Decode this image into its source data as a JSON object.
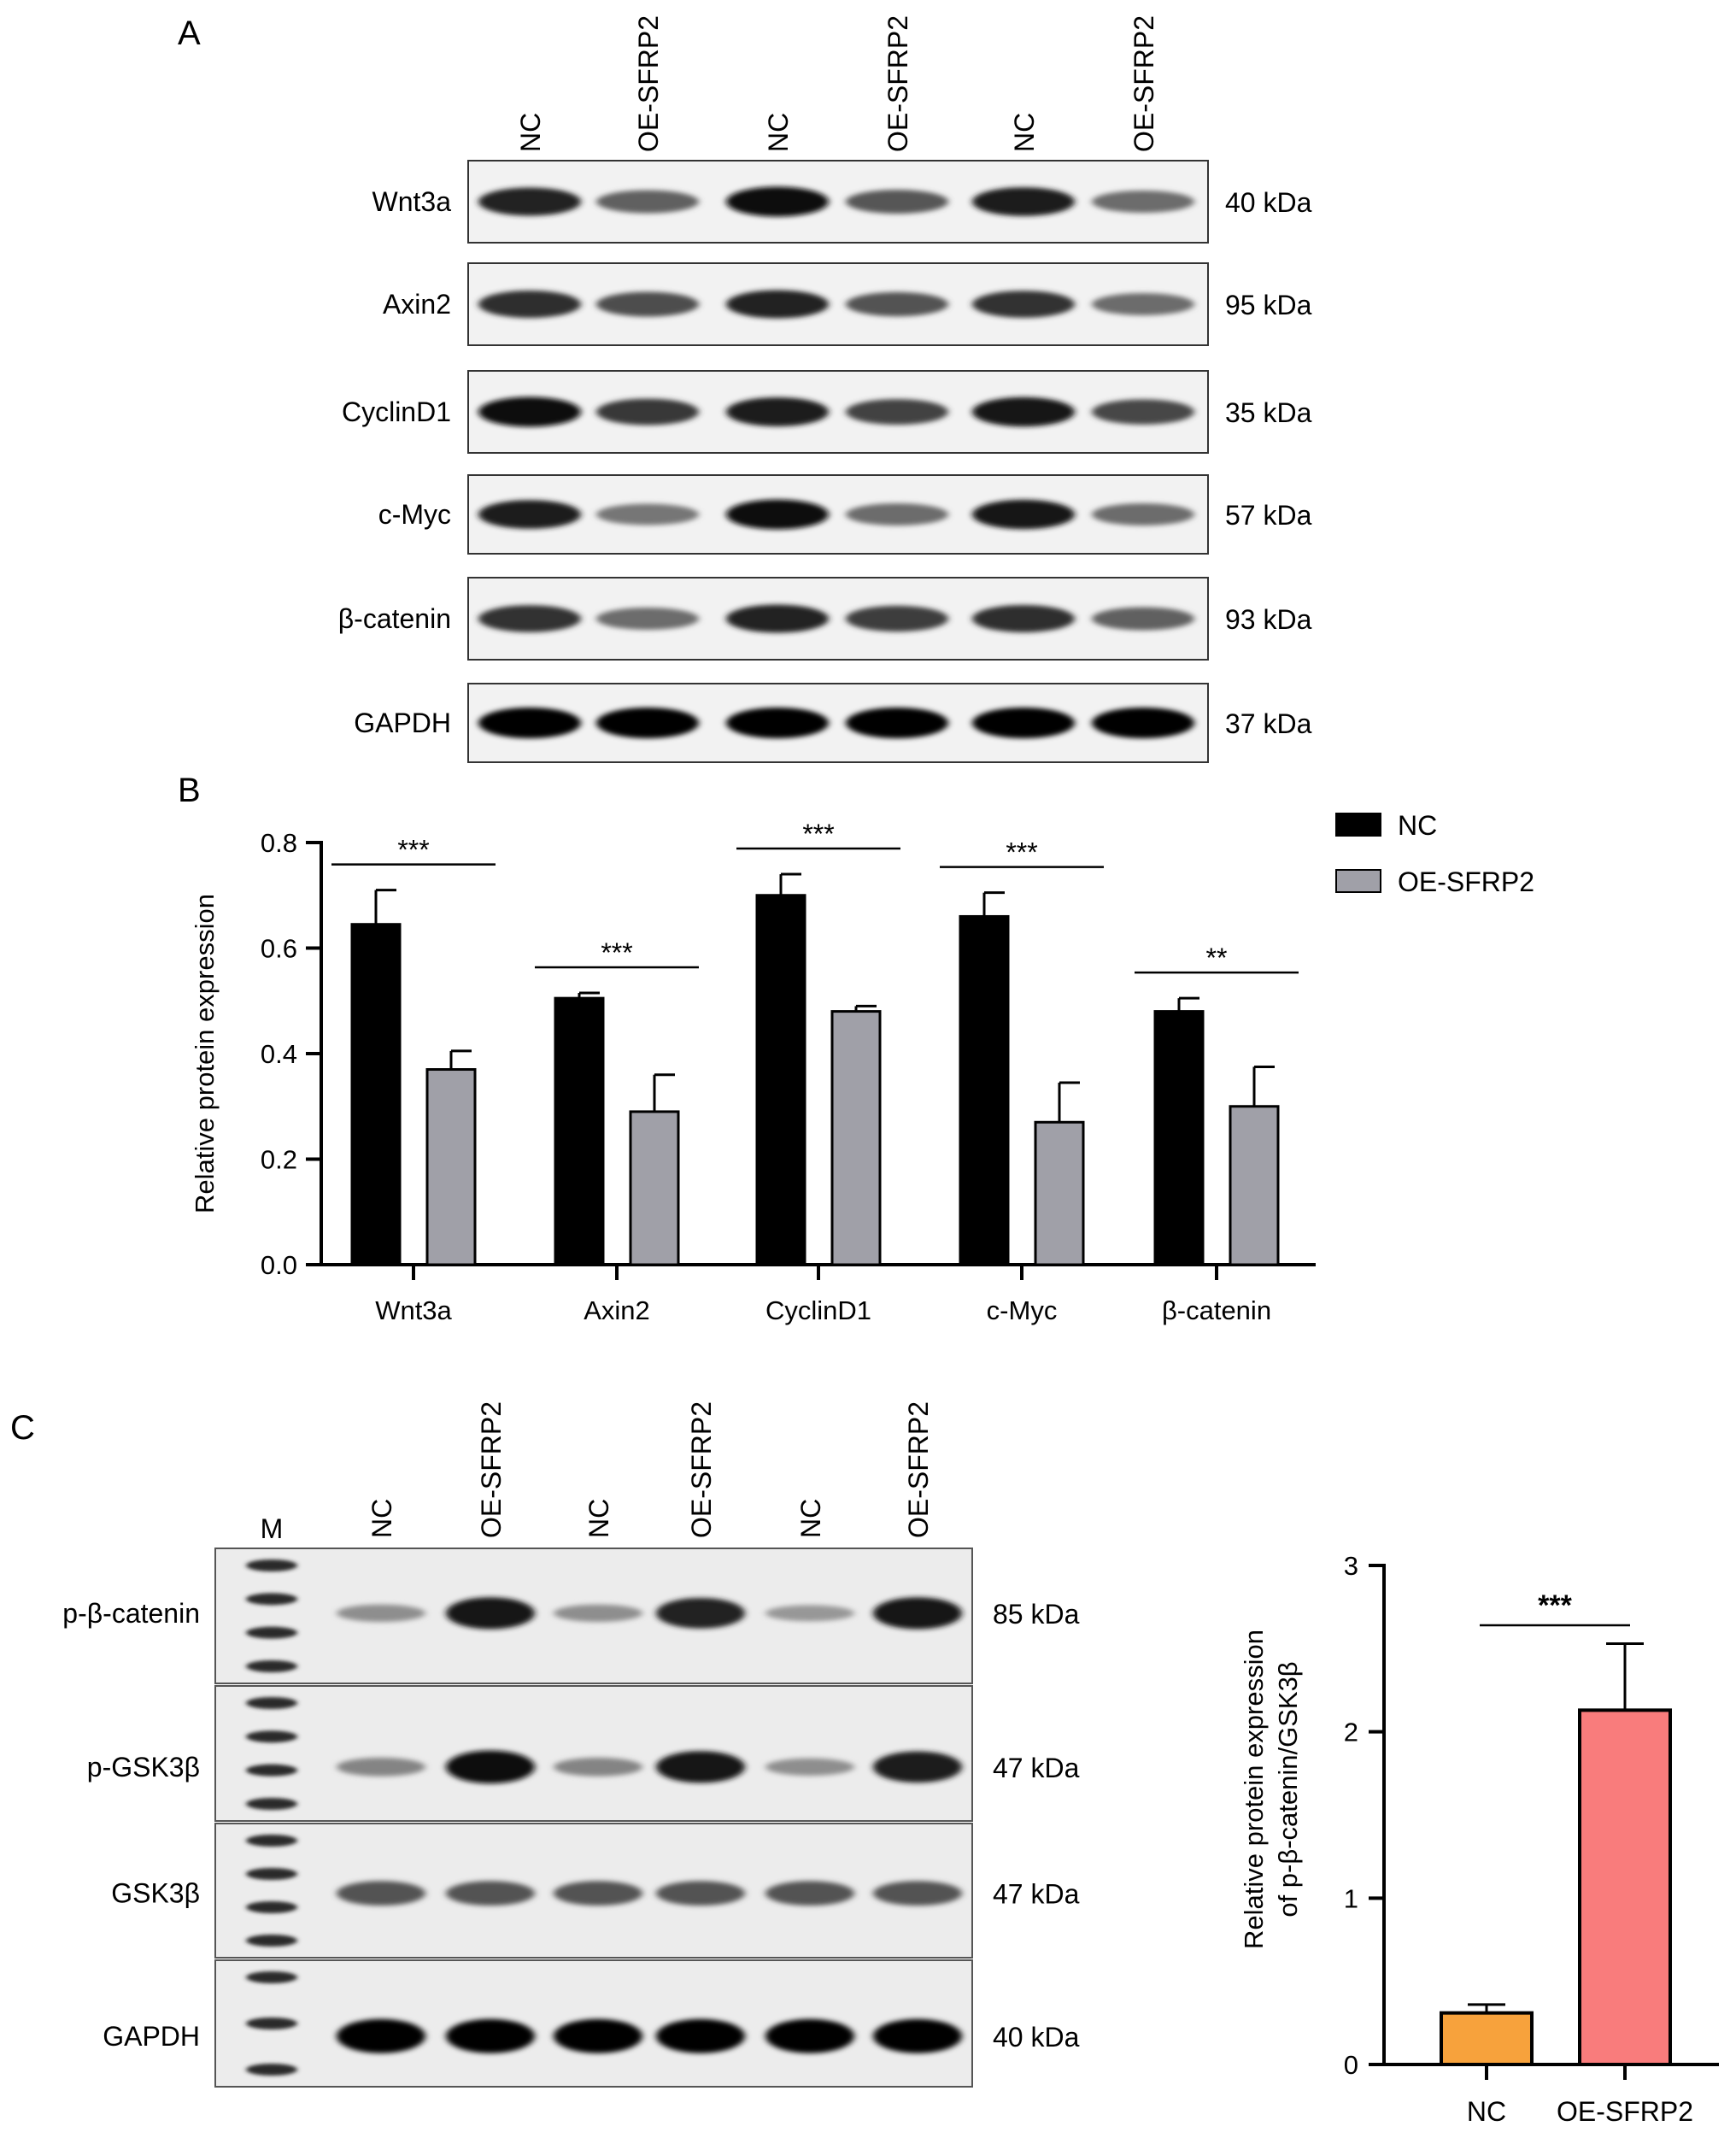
{
  "panels": {
    "A": {
      "letter": "A",
      "lanes": [
        "NC",
        "OE-SFRP2",
        "NC",
        "OE-SFRP2",
        "NC",
        "OE-SFRP2"
      ],
      "rows": [
        {
          "protein": "Wnt3a",
          "size": "40 kDa",
          "intensity": [
            0.85,
            0.55,
            0.95,
            0.6,
            0.88,
            0.5
          ]
        },
        {
          "protein": "Axin2",
          "size": "95 kDa",
          "intensity": [
            0.8,
            0.65,
            0.85,
            0.62,
            0.78,
            0.5
          ]
        },
        {
          "protein": "CyclinD1",
          "size": "35 kDa",
          "intensity": [
            0.95,
            0.75,
            0.9,
            0.7,
            0.92,
            0.68
          ]
        },
        {
          "protein": "c-Myc",
          "size": "57 kDa",
          "intensity": [
            0.88,
            0.45,
            0.95,
            0.5,
            0.92,
            0.5
          ]
        },
        {
          "protein": "β-catenin",
          "size": "93 kDa",
          "intensity": [
            0.78,
            0.5,
            0.85,
            0.72,
            0.8,
            0.55
          ]
        },
        {
          "protein": "GAPDH",
          "size": "37 kDa",
          "intensity": [
            1.0,
            1.0,
            1.0,
            1.0,
            1.0,
            1.0
          ]
        }
      ]
    },
    "B": {
      "letter": "B"
    },
    "C": {
      "letter": "C",
      "lanes": [
        "M",
        "NC",
        "OE-SFRP2",
        "NC",
        "OE-SFRP2",
        "NC",
        "OE-SFRP2"
      ],
      "rows": [
        {
          "protein": "p-β-catenin",
          "size": "85 kDa",
          "intensity": [
            0.3,
            0.9,
            0.3,
            0.85,
            0.25,
            0.9
          ]
        },
        {
          "protein": "p-GSK3β",
          "size": "47 kDa",
          "intensity": [
            0.35,
            0.95,
            0.35,
            0.9,
            0.3,
            0.88
          ]
        },
        {
          "protein": "GSK3β",
          "size": "47 kDa",
          "intensity": [
            0.6,
            0.6,
            0.6,
            0.6,
            0.6,
            0.6
          ]
        },
        {
          "protein": "GAPDH",
          "size": "40 kDa",
          "intensity": [
            1.0,
            1.0,
            1.0,
            1.0,
            1.0,
            1.0
          ]
        }
      ]
    }
  },
  "colors": {
    "nc_bar": "#000000",
    "oe_bar": "#a0a0a8",
    "nc_bar_c": "#f7a23c",
    "oe_bar_c": "#f97c7c"
  },
  "chart_data": [
    {
      "type": "bar",
      "panel": "B",
      "title": "",
      "xlabel": "",
      "ylabel": "Relative protein expression",
      "ylim": [
        0,
        0.8
      ],
      "yticks": [
        "0.0",
        "0.2",
        "0.4",
        "0.6",
        "0.8"
      ],
      "categories": [
        "Wnt3a",
        "Axin2",
        "CyclinD1",
        "c-Myc",
        "β-catenin"
      ],
      "series": [
        {
          "name": "NC",
          "values": [
            0.645,
            0.505,
            0.7,
            0.66,
            0.48
          ],
          "errors": [
            0.065,
            0.01,
            0.04,
            0.045,
            0.025
          ]
        },
        {
          "name": "OE-SFRP2",
          "values": [
            0.37,
            0.29,
            0.48,
            0.27,
            0.3
          ],
          "errors": [
            0.035,
            0.07,
            0.01,
            0.075,
            0.075
          ]
        }
      ],
      "significance": [
        "***",
        "***",
        "***",
        "***",
        "**"
      ],
      "legend_position": "top-right"
    },
    {
      "type": "bar",
      "panel": "C",
      "title": "",
      "xlabel": "",
      "ylabel": "Relative protein expression of p-β-catenin/GSK3β",
      "ylim": [
        0,
        3
      ],
      "yticks": [
        "0",
        "1",
        "2",
        "3"
      ],
      "categories": [
        "NC",
        "OE-SFRP2"
      ],
      "values": [
        0.31,
        2.13
      ],
      "errors": [
        0.05,
        0.4
      ],
      "significance": "***"
    }
  ]
}
